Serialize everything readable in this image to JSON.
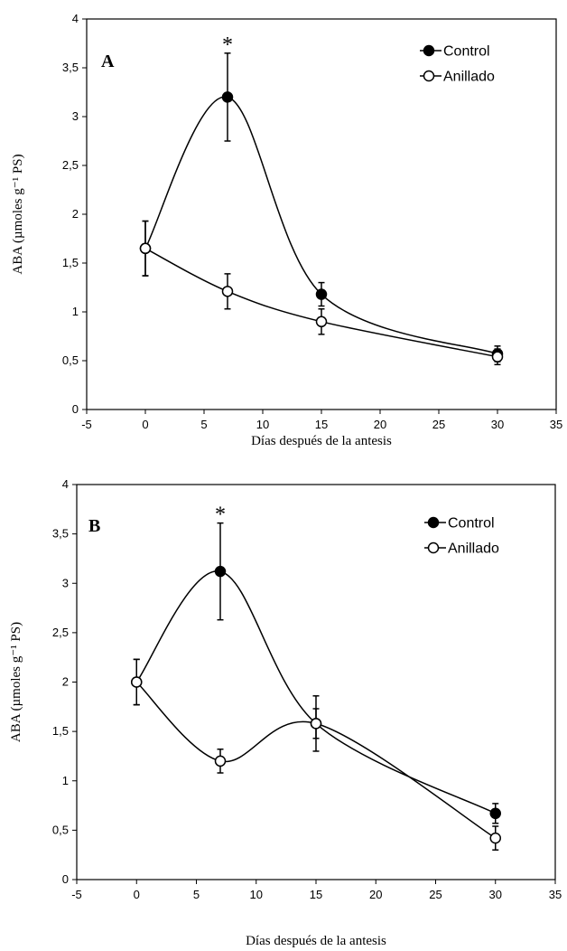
{
  "chart_data": [
    {
      "type": "line",
      "panel_label": "A",
      "xlabel": "Días después de la antesis",
      "ylabel": "ABA (µmoles g⁻¹ PS)",
      "xlim": [
        -5,
        35
      ],
      "ylim": [
        0,
        4
      ],
      "xticks": [
        -5,
        0,
        5,
        10,
        15,
        20,
        25,
        30,
        35
      ],
      "yticks": [
        0,
        0.5,
        1,
        1.5,
        2,
        2.5,
        3,
        3.5,
        4
      ],
      "xtick_labels": [
        "-5",
        "0",
        "5",
        "10",
        "15",
        "20",
        "25",
        "30",
        "35"
      ],
      "ytick_labels": [
        "0",
        "0,5",
        "1",
        "1,5",
        "2",
        "2,5",
        "3",
        "3,5",
        "4"
      ],
      "legend_position": "top-right",
      "grid": false,
      "x": [
        0,
        7,
        15,
        30
      ],
      "series": [
        {
          "name": "Control",
          "marker": "filled",
          "values": [
            1.65,
            3.2,
            1.18,
            0.57
          ],
          "errors": [
            0.28,
            0.45,
            0.12,
            0.08
          ]
        },
        {
          "name": "Anillado",
          "marker": "open",
          "values": [
            1.65,
            1.21,
            0.9,
            0.54
          ],
          "errors": [
            0.28,
            0.18,
            0.13,
            0.08
          ]
        }
      ],
      "annotations": [
        {
          "text": "*",
          "x": 7
        }
      ]
    },
    {
      "type": "line",
      "panel_label": "B",
      "xlabel": "Días después de la antesis",
      "ylabel": "ABA (µmoles g⁻¹ PS)",
      "xlim": [
        -5,
        35
      ],
      "ylim": [
        0,
        4
      ],
      "xticks": [
        -5,
        0,
        5,
        10,
        15,
        20,
        25,
        30,
        35
      ],
      "yticks": [
        0,
        0.5,
        1,
        1.5,
        2,
        2.5,
        3,
        3.5,
        4
      ],
      "xtick_labels": [
        "-5",
        "0",
        "5",
        "10",
        "15",
        "20",
        "25",
        "30",
        "35"
      ],
      "ytick_labels": [
        "0",
        "0,5",
        "1",
        "1,5",
        "2",
        "2,5",
        "3",
        "3,5",
        "4"
      ],
      "legend_position": "top-right",
      "grid": false,
      "x": [
        0,
        7,
        15,
        30
      ],
      "series": [
        {
          "name": "Control",
          "marker": "filled",
          "values": [
            2.0,
            3.12,
            1.58,
            0.67
          ],
          "errors": [
            0.23,
            0.49,
            0.28,
            0.1
          ]
        },
        {
          "name": "Anillado",
          "marker": "open",
          "values": [
            2.0,
            1.2,
            1.58,
            0.42
          ],
          "errors": [
            0.23,
            0.12,
            0.15,
            0.12
          ]
        }
      ],
      "annotations": [
        {
          "text": "*",
          "x": 7
        }
      ]
    }
  ]
}
